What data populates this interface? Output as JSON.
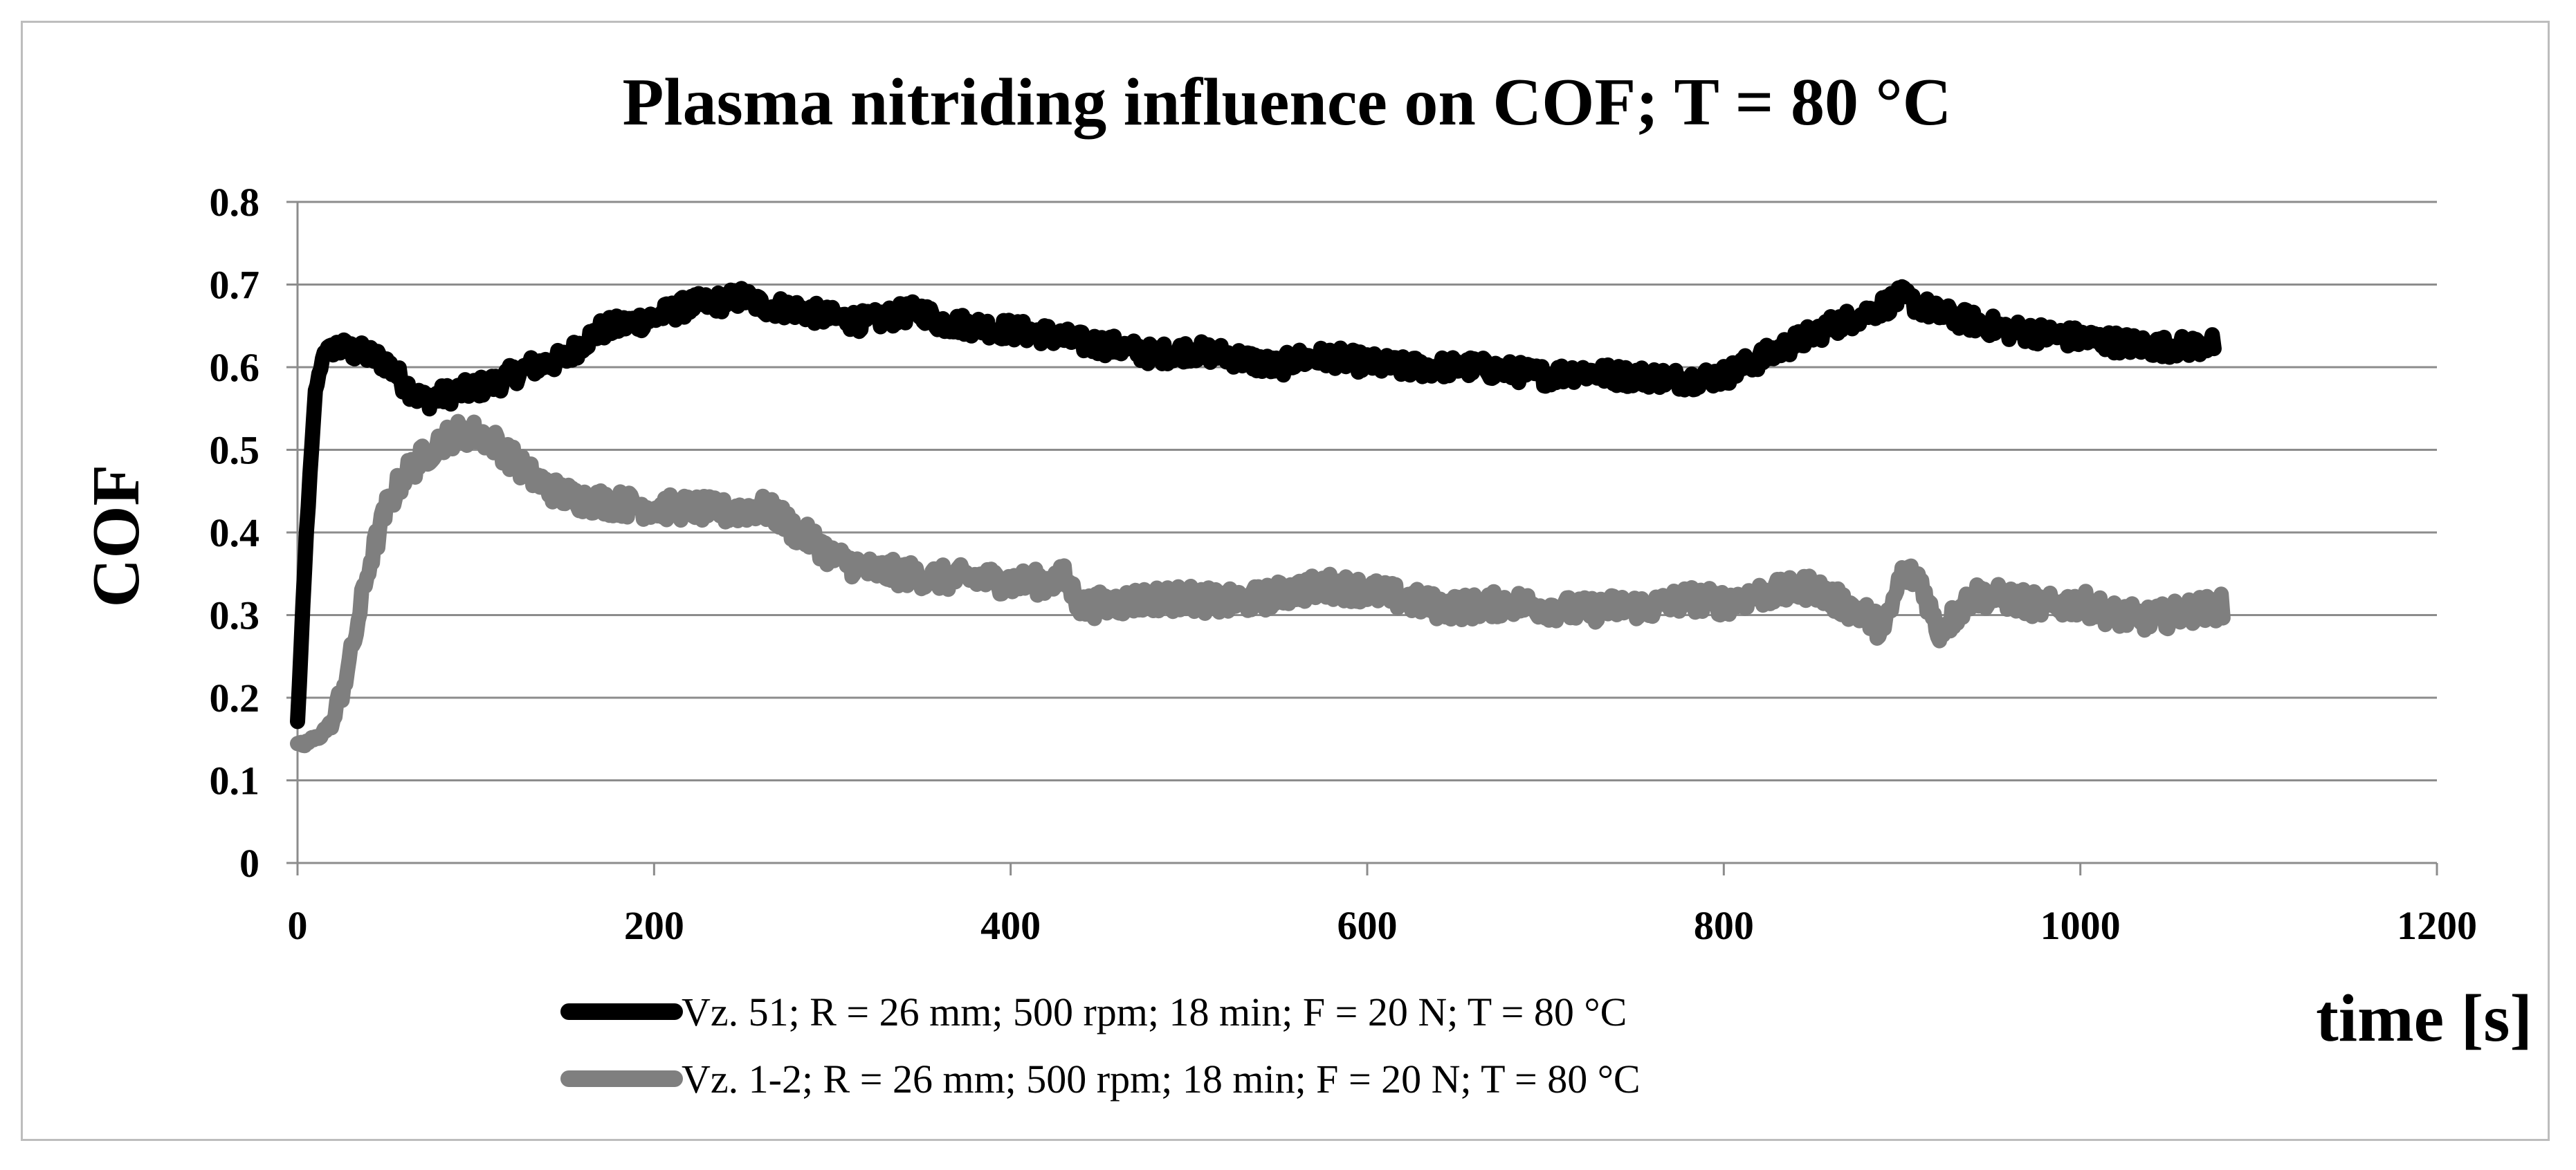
{
  "chart_data": {
    "type": "line",
    "title": "Plasma nitriding influence on COF; T = 80 °C",
    "xlabel": "time [s]",
    "ylabel": "COF",
    "xlim": [
      0,
      1200
    ],
    "ylim": [
      0,
      0.8
    ],
    "x_ticks": [
      0,
      200,
      400,
      600,
      800,
      1000,
      1200
    ],
    "y_ticks": [
      0,
      0.1,
      0.2,
      0.3,
      0.4,
      0.5,
      0.6,
      0.7,
      0.8
    ],
    "x_tick_labels": [
      "0",
      "200",
      "400",
      "600",
      "800",
      "1000",
      "1200"
    ],
    "y_tick_labels": [
      "0",
      "0.1",
      "0.2",
      "0.3",
      "0.4",
      "0.5",
      "0.6",
      "0.7",
      "0.8"
    ],
    "grid": "horizontal",
    "legend_position": "bottom",
    "series": [
      {
        "name": "Vz. 51; R = 26 mm; 500 rpm; 18 min; F = 20 N; T = 80 °C",
        "color": "#000000",
        "noise": 0.013,
        "x": [
          0,
          5,
          10,
          15,
          20,
          30,
          40,
          50,
          60,
          70,
          80,
          90,
          100,
          110,
          120,
          130,
          140,
          150,
          160,
          170,
          180,
          200,
          220,
          240,
          250,
          260,
          280,
          300,
          320,
          340,
          350,
          360,
          380,
          400,
          420,
          440,
          460,
          480,
          500,
          520,
          540,
          550,
          560,
          580,
          600,
          620,
          640,
          660,
          680,
          700,
          720,
          740,
          760,
          780,
          800,
          820,
          840,
          860,
          880,
          900,
          920,
          940,
          960,
          980,
          1000,
          1020,
          1040,
          1060,
          1075
        ],
        "y": [
          0.17,
          0.4,
          0.57,
          0.62,
          0.625,
          0.62,
          0.615,
          0.605,
          0.58,
          0.56,
          0.565,
          0.57,
          0.575,
          0.58,
          0.59,
          0.6,
          0.605,
          0.61,
          0.63,
          0.645,
          0.65,
          0.66,
          0.675,
          0.68,
          0.685,
          0.675,
          0.67,
          0.66,
          0.655,
          0.665,
          0.668,
          0.655,
          0.65,
          0.645,
          0.64,
          0.63,
          0.625,
          0.615,
          0.62,
          0.615,
          0.605,
          0.6,
          0.61,
          0.612,
          0.605,
          0.6,
          0.6,
          0.6,
          0.595,
          0.59,
          0.595,
          0.59,
          0.588,
          0.585,
          0.59,
          0.61,
          0.63,
          0.65,
          0.665,
          0.685,
          0.665,
          0.655,
          0.645,
          0.64,
          0.635,
          0.63,
          0.625,
          0.625,
          0.628
        ]
      },
      {
        "name": "Vz. 1-2; R = 26 mm; 500 rpm; 18 min; F = 20 N; T = 80 °C",
        "color": "#7f7f7f",
        "noise": 0.016,
        "x": [
          0,
          10,
          20,
          30,
          40,
          50,
          60,
          70,
          80,
          90,
          100,
          110,
          120,
          130,
          140,
          150,
          160,
          180,
          200,
          220,
          240,
          260,
          270,
          280,
          290,
          300,
          320,
          340,
          360,
          380,
          400,
          420,
          430,
          440,
          460,
          480,
          500,
          520,
          540,
          560,
          580,
          600,
          620,
          640,
          660,
          680,
          700,
          720,
          740,
          760,
          780,
          800,
          820,
          840,
          850,
          860,
          880,
          890,
          900,
          910,
          920,
          930,
          940,
          960,
          980,
          1000,
          1020,
          1040,
          1060,
          1080
        ],
        "y": [
          0.14,
          0.15,
          0.17,
          0.25,
          0.36,
          0.43,
          0.47,
          0.49,
          0.51,
          0.52,
          0.52,
          0.51,
          0.49,
          0.47,
          0.455,
          0.445,
          0.44,
          0.435,
          0.43,
          0.43,
          0.425,
          0.43,
          0.42,
          0.4,
          0.39,
          0.37,
          0.355,
          0.35,
          0.345,
          0.345,
          0.34,
          0.34,
          0.345,
          0.31,
          0.315,
          0.32,
          0.32,
          0.315,
          0.32,
          0.33,
          0.335,
          0.33,
          0.32,
          0.31,
          0.31,
          0.315,
          0.31,
          0.305,
          0.31,
          0.31,
          0.32,
          0.315,
          0.325,
          0.33,
          0.335,
          0.32,
          0.3,
          0.28,
          0.35,
          0.345,
          0.28,
          0.3,
          0.325,
          0.32,
          0.31,
          0.315,
          0.3,
          0.295,
          0.305,
          0.31
        ]
      }
    ]
  }
}
